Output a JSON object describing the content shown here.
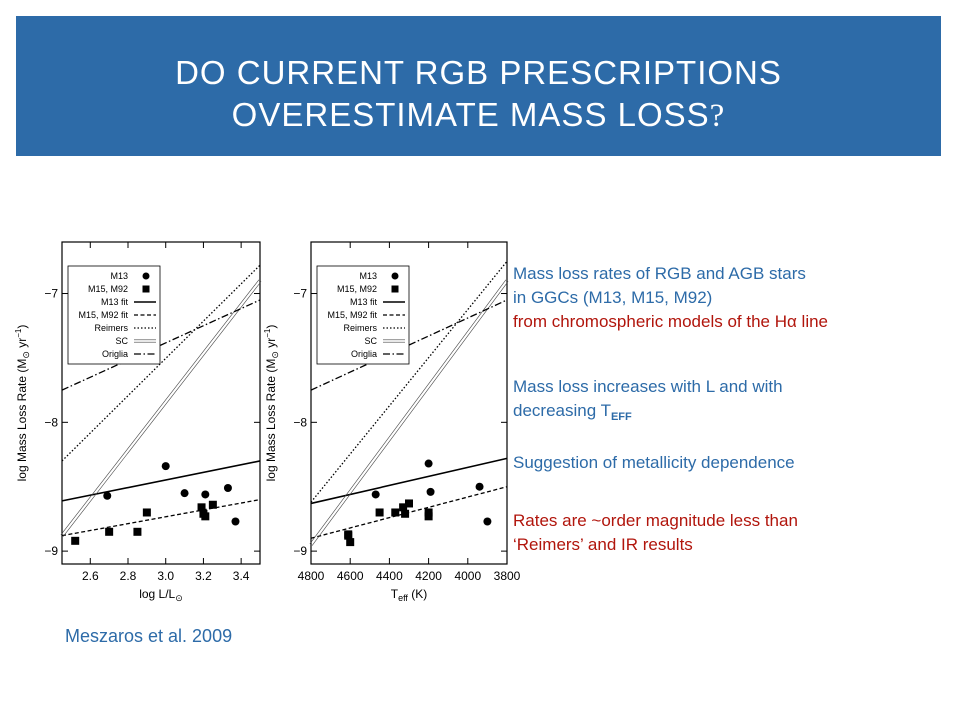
{
  "slide": {
    "title_line1": "DO CURRENT RGB PRESCRIPTIONS",
    "title_line2": "OVERESTIMATE MASS LOSS",
    "title_qmark": "?",
    "notes": {
      "n1_line1": "Mass loss rates  of RGB and AGB stars",
      "n1_line2": "in GGCs (M13, M15, M92)",
      "n1_line3": "from chromospheric models of the Hα line",
      "n2_line1": "Mass loss increases with L and with",
      "n2_line2_prefix": "decreasing T",
      "n2_line2_sub": "EFF",
      "n3": "Suggestion of metallicity dependence",
      "n4_line1": "Rates are ~order magnitude less than",
      "n4_line2": "‘Reimers’ and IR results"
    },
    "citation": "Meszaros et al. 2009",
    "colors": {
      "banner": "#2d6ba8",
      "blue_text": "#2d6ba8",
      "red_text": "#b1150c"
    }
  },
  "chart_data": [
    {
      "type": "scatter",
      "xlabel": "log L/L⊙",
      "ylabel": "log Mass Loss Rate (M⊙ yr⁻¹)",
      "xlim": [
        2.45,
        3.5
      ],
      "ylim": [
        -9.1,
        -6.6
      ],
      "xticks": [
        "2.6",
        "2.8",
        "3.0",
        "3.2",
        "3.4"
      ],
      "xtick_values": [
        2.6,
        2.8,
        3.0,
        3.2,
        3.4
      ],
      "yticks": [
        "−7",
        "−8",
        "−9"
      ],
      "ytick_values": [
        -7,
        -8,
        -9
      ],
      "legend": {
        "placement": "top-left",
        "entries": [
          "M13",
          "M15, M92",
          "M13 fit",
          "M15, M92 fit",
          "Reimers",
          "SC",
          "Origlia"
        ]
      },
      "series": [
        {
          "name": "M13",
          "marker": "circle",
          "points": [
            [
              2.69,
              -8.57
            ],
            [
              3.0,
              -8.34
            ],
            [
              3.1,
              -8.55
            ],
            [
              3.21,
              -8.56
            ],
            [
              3.33,
              -8.51
            ],
            [
              3.37,
              -8.77
            ]
          ]
        },
        {
          "name": "M15, M92",
          "marker": "square",
          "points": [
            [
              2.52,
              -8.92
            ],
            [
              2.7,
              -8.85
            ],
            [
              2.85,
              -8.85
            ],
            [
              2.9,
              -8.7
            ],
            [
              3.19,
              -8.66
            ],
            [
              3.2,
              -8.71
            ],
            [
              3.21,
              -8.73
            ],
            [
              3.25,
              -8.64
            ]
          ]
        },
        {
          "name": "M13 fit",
          "style": "solid",
          "points": [
            [
              2.45,
              -8.61
            ],
            [
              3.5,
              -8.3
            ]
          ]
        },
        {
          "name": "M15, M92 fit",
          "style": "dashed",
          "points": [
            [
              2.45,
              -8.88
            ],
            [
              3.5,
              -8.6
            ]
          ]
        },
        {
          "name": "Reimers",
          "style": "dotted",
          "points": [
            [
              2.45,
              -8.3
            ],
            [
              3.5,
              -6.78
            ]
          ]
        },
        {
          "name": "SC",
          "style": "double",
          "points": [
            [
              2.45,
              -8.88
            ],
            [
              3.5,
              -6.9
            ]
          ]
        },
        {
          "name": "Origlia",
          "style": "dashdot",
          "points": [
            [
              2.45,
              -7.75
            ],
            [
              3.5,
              -7.05
            ]
          ]
        }
      ]
    },
    {
      "type": "scatter",
      "xlabel": "Teff (K)",
      "ylabel": "log Mass Loss Rate (M⊙ yr⁻¹)",
      "xlim": [
        4800,
        3800
      ],
      "ylim": [
        -9.1,
        -6.6
      ],
      "xticks": [
        "4800",
        "4600",
        "4400",
        "4200",
        "4000",
        "3800"
      ],
      "xtick_values": [
        4800,
        4600,
        4400,
        4200,
        4000,
        3800
      ],
      "yticks": [
        "−7",
        "−8",
        "−9"
      ],
      "ytick_values": [
        -7,
        -8,
        -9
      ],
      "legend": {
        "placement": "top-left",
        "entries": [
          "M13",
          "M15, M92",
          "M13 fit",
          "M15, M92 fit",
          "Reimers",
          "SC",
          "Origlia"
        ]
      },
      "series": [
        {
          "name": "M13",
          "marker": "circle",
          "points": [
            [
              4470,
              -8.56
            ],
            [
              4200,
              -8.32
            ],
            [
              4190,
              -8.54
            ],
            [
              3940,
              -8.5
            ],
            [
              3900,
              -8.77
            ]
          ]
        },
        {
          "name": "M15, M92",
          "marker": "square",
          "points": [
            [
              4610,
              -8.87
            ],
            [
              4600,
              -8.93
            ],
            [
              4610,
              -8.88
            ],
            [
              4450,
              -8.7
            ],
            [
              4370,
              -8.7
            ],
            [
              4330,
              -8.66
            ],
            [
              4320,
              -8.71
            ],
            [
              4300,
              -8.63
            ],
            [
              4200,
              -8.7
            ],
            [
              4200,
              -8.73
            ]
          ]
        },
        {
          "name": "M13 fit",
          "style": "solid",
          "points": [
            [
              4800,
              -8.63
            ],
            [
              3800,
              -8.28
            ]
          ]
        },
        {
          "name": "M15, M92 fit",
          "style": "dashed",
          "points": [
            [
              4800,
              -8.9
            ],
            [
              3800,
              -8.5
            ]
          ]
        },
        {
          "name": "Reimers",
          "style": "dotted",
          "points": [
            [
              4800,
              -8.62
            ],
            [
              3800,
              -6.75
            ]
          ]
        },
        {
          "name": "SC",
          "style": "double",
          "points": [
            [
              4800,
              -8.95
            ],
            [
              3800,
              -6.9
            ]
          ]
        },
        {
          "name": "Origlia",
          "style": "dashdot",
          "points": [
            [
              4800,
              -7.75
            ],
            [
              3800,
              -7.05
            ]
          ]
        }
      ]
    }
  ]
}
